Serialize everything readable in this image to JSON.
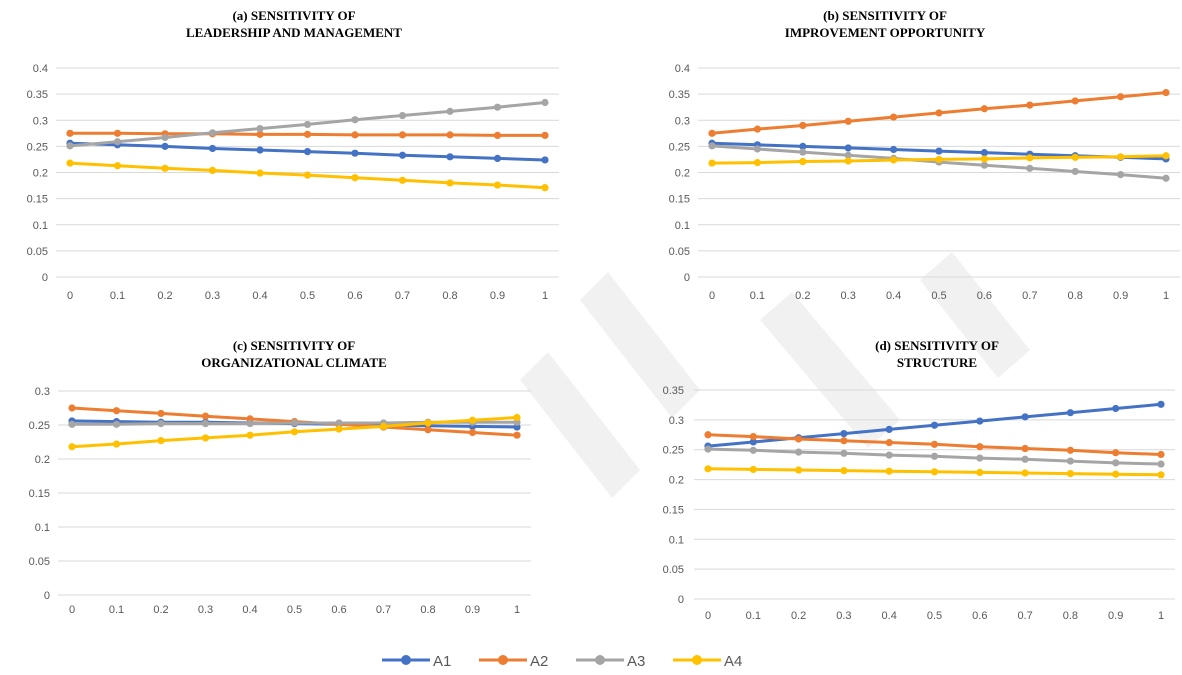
{
  "chart_data": [
    {
      "type": "line",
      "title_line1": "(a) SENSITIVITY OF",
      "title_line2": "LEADERSHIP AND MANAGEMENT",
      "x": [
        "0",
        "0.1",
        "0.2",
        "0.3",
        "0.4",
        "0.5",
        "0.6",
        "0.7",
        "0.8",
        "0.9",
        "1"
      ],
      "yticks": [
        "0",
        "0.05",
        "0.1",
        "0.15",
        "0.2",
        "0.25",
        "0.3",
        "0.35",
        "0.4"
      ],
      "ylim": [
        0,
        0.4
      ],
      "series": [
        {
          "name": "A1",
          "values": [
            0.256,
            0.253,
            0.25,
            0.246,
            0.243,
            0.24,
            0.237,
            0.233,
            0.23,
            0.227,
            0.224
          ]
        },
        {
          "name": "A2",
          "values": [
            0.275,
            0.275,
            0.274,
            0.274,
            0.273,
            0.273,
            0.272,
            0.272,
            0.272,
            0.271,
            0.271
          ]
        },
        {
          "name": "A3",
          "values": [
            0.251,
            0.259,
            0.267,
            0.276,
            0.284,
            0.292,
            0.301,
            0.309,
            0.317,
            0.325,
            0.334
          ]
        },
        {
          "name": "A4",
          "values": [
            0.218,
            0.213,
            0.208,
            0.204,
            0.199,
            0.195,
            0.19,
            0.185,
            0.18,
            0.176,
            0.171
          ]
        }
      ]
    },
    {
      "type": "line",
      "title_line1": "(b) SENSITIVITY OF",
      "title_line2": "IMPROVEMENT OPPORTUNITY",
      "x": [
        "0",
        "0.1",
        "0.2",
        "0.3",
        "0.4",
        "0.5",
        "0.6",
        "0.7",
        "0.8",
        "0.9",
        "1"
      ],
      "yticks": [
        "0",
        "0.05",
        "0.1",
        "0.15",
        "0.2",
        "0.25",
        "0.3",
        "0.35",
        "0.4"
      ],
      "ylim": [
        0,
        0.4
      ],
      "series": [
        {
          "name": "A1",
          "values": [
            0.256,
            0.253,
            0.25,
            0.247,
            0.244,
            0.241,
            0.238,
            0.235,
            0.232,
            0.229,
            0.226
          ]
        },
        {
          "name": "A2",
          "values": [
            0.275,
            0.283,
            0.29,
            0.298,
            0.306,
            0.314,
            0.322,
            0.329,
            0.337,
            0.345,
            0.353
          ]
        },
        {
          "name": "A3",
          "values": [
            0.251,
            0.245,
            0.239,
            0.233,
            0.227,
            0.22,
            0.214,
            0.208,
            0.202,
            0.196,
            0.189
          ]
        },
        {
          "name": "A4",
          "values": [
            0.218,
            0.219,
            0.221,
            0.222,
            0.224,
            0.225,
            0.226,
            0.228,
            0.229,
            0.23,
            0.232
          ]
        }
      ]
    },
    {
      "type": "line",
      "title_line1": "(c) SENSITIVITY OF",
      "title_line2": "ORGANIZATIONAL CLIMATE",
      "x": [
        "0",
        "0.1",
        "0.2",
        "0.3",
        "0.4",
        "0.5",
        "0.6",
        "0.7",
        "0.8",
        "0.9",
        "1"
      ],
      "yticks": [
        "0",
        "0.05",
        "0.1",
        "0.15",
        "0.2",
        "0.25",
        "0.3"
      ],
      "ylim": [
        0,
        0.3
      ],
      "series": [
        {
          "name": "A1",
          "values": [
            0.256,
            0.255,
            0.254,
            0.254,
            0.253,
            0.252,
            0.251,
            0.25,
            0.249,
            0.248,
            0.247
          ]
        },
        {
          "name": "A2",
          "values": [
            0.275,
            0.271,
            0.267,
            0.263,
            0.259,
            0.255,
            0.251,
            0.247,
            0.243,
            0.239,
            0.235
          ]
        },
        {
          "name": "A3",
          "values": [
            0.251,
            0.251,
            0.252,
            0.252,
            0.252,
            0.253,
            0.253,
            0.253,
            0.254,
            0.254,
            0.254
          ]
        },
        {
          "name": "A4",
          "values": [
            0.218,
            0.222,
            0.227,
            0.231,
            0.235,
            0.24,
            0.244,
            0.248,
            0.253,
            0.257,
            0.261
          ]
        }
      ]
    },
    {
      "type": "line",
      "title_line1": "(d) SENSITIVITY OF",
      "title_line2": "STRUCTURE",
      "x": [
        "0",
        "0.1",
        "0.2",
        "0.3",
        "0.4",
        "0.5",
        "0.6",
        "0.7",
        "0.8",
        "0.9",
        "1"
      ],
      "yticks": [
        "0",
        "0.05",
        "0.1",
        "0.15",
        "0.2",
        "0.25",
        "0.3",
        "0.35"
      ],
      "ylim": [
        0,
        0.35
      ],
      "series": [
        {
          "name": "A1",
          "values": [
            0.256,
            0.263,
            0.27,
            0.277,
            0.284,
            0.291,
            0.298,
            0.305,
            0.312,
            0.319,
            0.326
          ]
        },
        {
          "name": "A2",
          "values": [
            0.275,
            0.272,
            0.268,
            0.265,
            0.262,
            0.259,
            0.255,
            0.252,
            0.249,
            0.245,
            0.242
          ]
        },
        {
          "name": "A3",
          "values": [
            0.251,
            0.249,
            0.246,
            0.244,
            0.241,
            0.239,
            0.236,
            0.234,
            0.231,
            0.228,
            0.226
          ]
        },
        {
          "name": "A4",
          "values": [
            0.218,
            0.217,
            0.216,
            0.215,
            0.214,
            0.213,
            0.212,
            0.211,
            0.21,
            0.209,
            0.208
          ]
        }
      ]
    }
  ],
  "legend": [
    {
      "name": "A1",
      "color": "#4472c4"
    },
    {
      "name": "A2",
      "color": "#ed7d31"
    },
    {
      "name": "A3",
      "color": "#a5a5a5"
    },
    {
      "name": "A4",
      "color": "#ffc000"
    }
  ]
}
